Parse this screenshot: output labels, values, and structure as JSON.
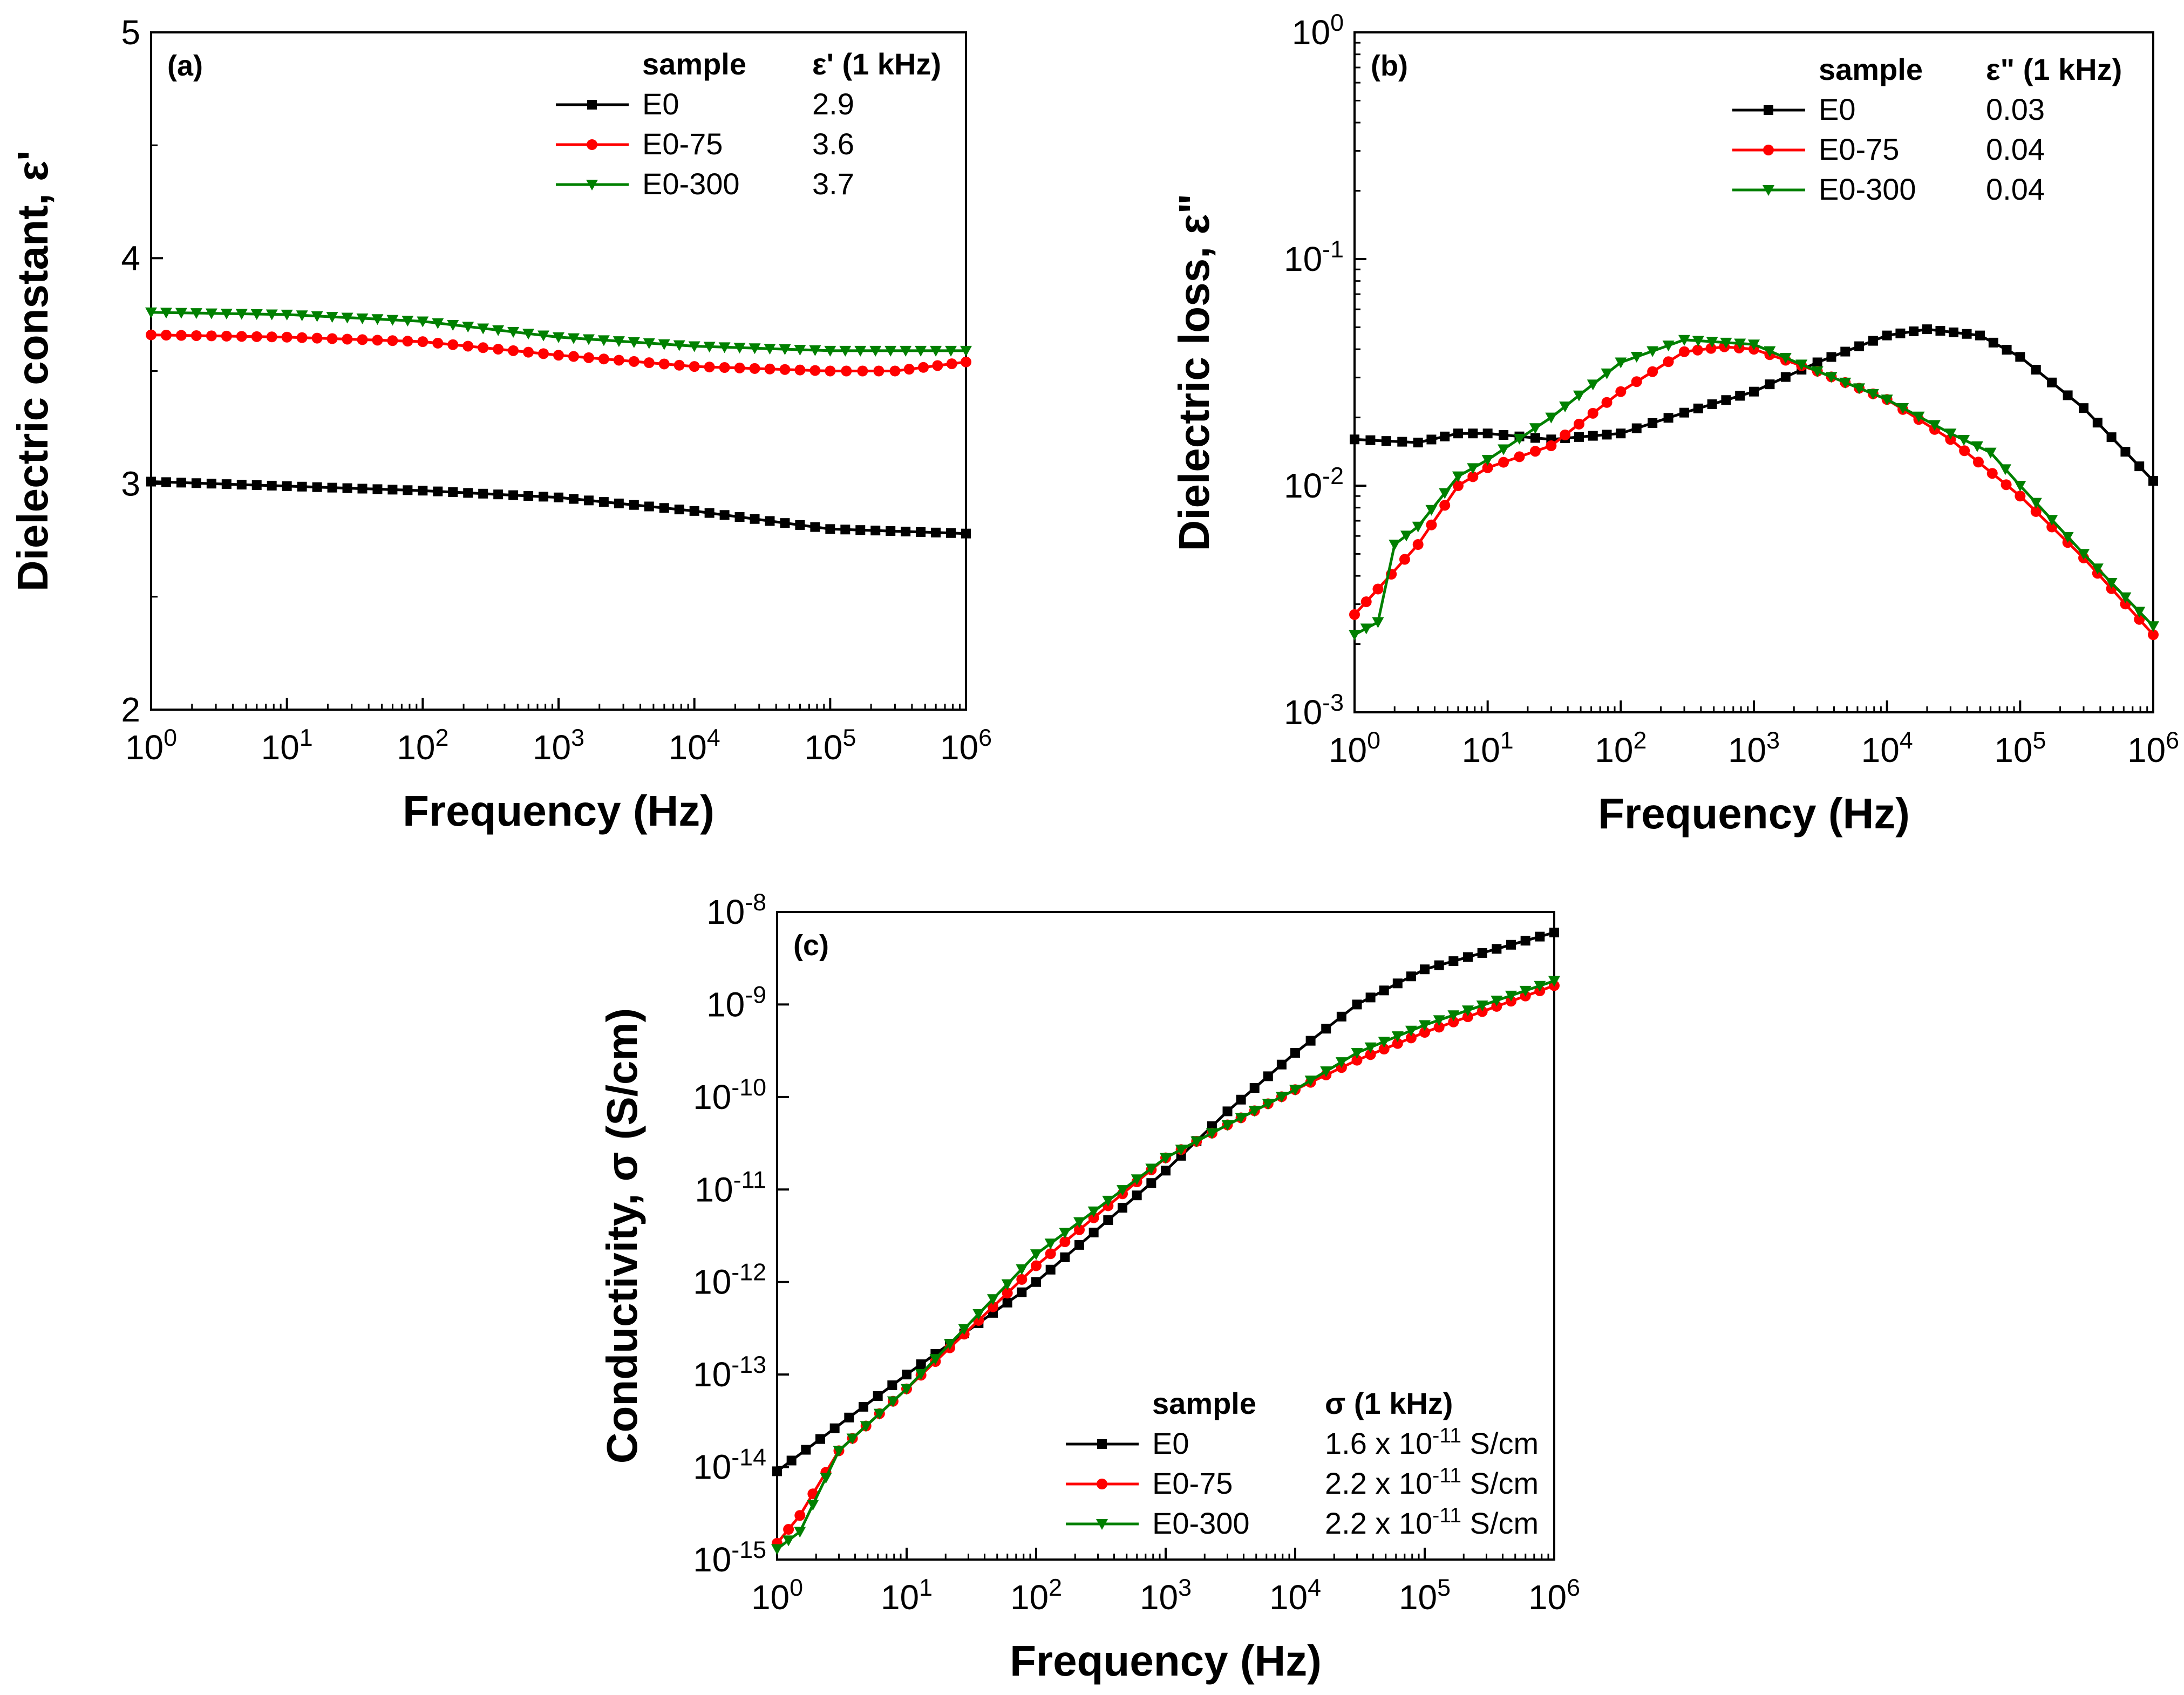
{
  "figure": {
    "colors": {
      "E0": "#000000",
      "E0-75": "#ff0000",
      "E0-300": "#008000"
    }
  },
  "chart_data": [
    {
      "id": "a",
      "type": "line",
      "panel_label": "(a)",
      "title": "",
      "xlabel": "Frequency (Hz)",
      "ylabel": "Dielectric constant, ε'",
      "xscale": "log",
      "yscale": "linear",
      "xlim": [
        1,
        1000000
      ],
      "ylim": [
        2,
        5
      ],
      "xticks": [
        1,
        10,
        100,
        1000,
        10000,
        100000,
        1000000
      ],
      "xtick_labels": [
        [
          "10",
          "0"
        ],
        [
          "10",
          "1"
        ],
        [
          "10",
          "2"
        ],
        [
          "10",
          "3"
        ],
        [
          "10",
          "4"
        ],
        [
          "10",
          "5"
        ],
        [
          "10",
          "6"
        ]
      ],
      "yticks": [
        2,
        3,
        4,
        5
      ],
      "ytick_labels": [
        "2",
        "3",
        "4",
        "5"
      ],
      "legend": {
        "position": "top-right",
        "header_sample": "sample",
        "header_value": "ε' (1 kHz)",
        "entries": [
          {
            "name": "E0",
            "value": "2.9"
          },
          {
            "name": "E0-75",
            "value": "3.6"
          },
          {
            "name": "E0-300",
            "value": "3.7"
          }
        ]
      },
      "series": [
        {
          "name": "E0",
          "marker": "square",
          "points": [
            [
              1,
              3.01
            ],
            [
              10,
              2.99
            ],
            [
              100,
              2.97
            ],
            [
              1000,
              2.94
            ],
            [
              10000,
              2.88
            ],
            [
              100000,
              2.8
            ],
            [
              1000000,
              2.78
            ]
          ]
        },
        {
          "name": "E0-75",
          "marker": "circle",
          "points": [
            [
              1,
              3.66
            ],
            [
              10,
              3.65
            ],
            [
              100,
              3.63
            ],
            [
              1000,
              3.57
            ],
            [
              10000,
              3.52
            ],
            [
              100000,
              3.5
            ],
            [
              300000,
              3.5
            ],
            [
              1000000,
              3.54
            ]
          ]
        },
        {
          "name": "E0-300",
          "marker": "triangle-down",
          "points": [
            [
              1,
              3.76
            ],
            [
              10,
              3.75
            ],
            [
              100,
              3.72
            ],
            [
              1000,
              3.65
            ],
            [
              10000,
              3.61
            ],
            [
              100000,
              3.59
            ],
            [
              1000000,
              3.59
            ]
          ]
        }
      ]
    },
    {
      "id": "b",
      "type": "line",
      "panel_label": "(b)",
      "title": "",
      "xlabel": "Frequency (Hz)",
      "ylabel": "Dielectric loss, ε\"",
      "xscale": "log",
      "yscale": "log",
      "xlim": [
        1,
        1000000
      ],
      "ylim": [
        0.001,
        1
      ],
      "xticks": [
        1,
        10,
        100,
        1000,
        10000,
        100000,
        1000000
      ],
      "xtick_labels": [
        [
          "10",
          "0"
        ],
        [
          "10",
          "1"
        ],
        [
          "10",
          "2"
        ],
        [
          "10",
          "3"
        ],
        [
          "10",
          "4"
        ],
        [
          "10",
          "5"
        ],
        [
          "10",
          "6"
        ]
      ],
      "yticks": [
        0.001,
        0.01,
        0.1,
        1
      ],
      "ytick_labels": [
        [
          "10",
          "-3"
        ],
        [
          "10",
          "-2"
        ],
        [
          "10",
          "-1"
        ],
        [
          "10",
          "0"
        ]
      ],
      "legend": {
        "position": "top-right",
        "header_sample": "sample",
        "header_value": "ε\" (1 kHz)",
        "entries": [
          {
            "name": "E0",
            "value": "0.03"
          },
          {
            "name": "E0-75",
            "value": "0.04"
          },
          {
            "name": "E0-300",
            "value": "0.04"
          }
        ]
      },
      "series": [
        {
          "name": "E0",
          "marker": "square",
          "points": [
            [
              1,
              0.016
            ],
            [
              3,
              0.0155
            ],
            [
              6,
              0.017
            ],
            [
              10,
              0.017
            ],
            [
              30,
              0.016
            ],
            [
              100,
              0.017
            ],
            [
              300,
              0.021
            ],
            [
              1000,
              0.026
            ],
            [
              3000,
              0.035
            ],
            [
              10000,
              0.046
            ],
            [
              20000,
              0.049
            ],
            [
              50000,
              0.046
            ],
            [
              100000,
              0.037
            ],
            [
              300000,
              0.022
            ],
            [
              1000000,
              0.0105
            ]
          ]
        },
        {
          "name": "E0-75",
          "marker": "circle",
          "points": [
            [
              1,
              0.0027
            ],
            [
              1.5,
              0.0035
            ],
            [
              3,
              0.0055
            ],
            [
              6,
              0.01
            ],
            [
              10,
              0.012
            ],
            [
              30,
              0.015
            ],
            [
              100,
              0.026
            ],
            [
              300,
              0.039
            ],
            [
              600,
              0.041
            ],
            [
              1000,
              0.04
            ],
            [
              3000,
              0.032
            ],
            [
              10000,
              0.024
            ],
            [
              30000,
              0.016
            ],
            [
              100000,
              0.009
            ],
            [
              300000,
              0.0048
            ],
            [
              1000000,
              0.0022
            ]
          ]
        },
        {
          "name": "E0-300",
          "marker": "triangle-down",
          "points": [
            [
              1,
              0.0022
            ],
            [
              1.5,
              0.0025
            ],
            [
              2,
              0.0055
            ],
            [
              3,
              0.0066
            ],
            [
              6,
              0.011
            ],
            [
              10,
              0.013
            ],
            [
              30,
              0.02
            ],
            [
              100,
              0.035
            ],
            [
              300,
              0.044
            ],
            [
              1000,
              0.042
            ],
            [
              3000,
              0.032
            ],
            [
              10000,
              0.024
            ],
            [
              30000,
              0.017
            ],
            [
              60000,
              0.014
            ],
            [
              100000,
              0.01
            ],
            [
              300000,
              0.005
            ],
            [
              1000000,
              0.0024
            ]
          ]
        }
      ]
    },
    {
      "id": "c",
      "type": "line",
      "panel_label": "(c)",
      "title": "",
      "xlabel": "Frequency (Hz)",
      "ylabel": "Conductivity, σ (S/cm)",
      "xscale": "log",
      "yscale": "log",
      "xlim": [
        1,
        1000000
      ],
      "ylim": [
        1e-15,
        1e-08
      ],
      "xticks": [
        1,
        10,
        100,
        1000,
        10000,
        100000,
        1000000
      ],
      "xtick_labels": [
        [
          "10",
          "0"
        ],
        [
          "10",
          "1"
        ],
        [
          "10",
          "2"
        ],
        [
          "10",
          "3"
        ],
        [
          "10",
          "4"
        ],
        [
          "10",
          "5"
        ],
        [
          "10",
          "6"
        ]
      ],
      "yticks": [
        1e-15,
        1e-14,
        1e-13,
        1e-12,
        1e-11,
        1e-10,
        1e-09,
        1e-08
      ],
      "ytick_labels": [
        [
          "10",
          "-15"
        ],
        [
          "10",
          "-14"
        ],
        [
          "10",
          "-13"
        ],
        [
          "10",
          "-12"
        ],
        [
          "10",
          "-11"
        ],
        [
          "10",
          "-10"
        ],
        [
          "10",
          "-9"
        ],
        [
          "10",
          "-8"
        ]
      ],
      "legend": {
        "position": "bottom-right",
        "header_sample": "sample",
        "header_value": "σ (1 kHz)",
        "entries": [
          {
            "name": "E0",
            "value_main": "1.6 x 10",
            "value_exp": "-11",
            "value_unit": " S/cm"
          },
          {
            "name": "E0-75",
            "value_main": "2.2 x 10",
            "value_exp": "-11",
            "value_unit": " S/cm"
          },
          {
            "name": "E0-300",
            "value_main": "2.2 x 10",
            "value_exp": "-11",
            "value_unit": " S/cm"
          }
        ]
      },
      "series": [
        {
          "name": "E0",
          "marker": "square",
          "points": [
            [
              1,
              9e-15
            ],
            [
              10,
              1e-13
            ],
            [
              100,
              1e-12
            ],
            [
              1000,
              1.6e-11
            ],
            [
              3000,
              7e-11
            ],
            [
              10000,
              3e-10
            ],
            [
              30000,
              1e-09
            ],
            [
              100000,
              2.4e-09
            ],
            [
              1000000,
              6e-09
            ]
          ]
        },
        {
          "name": "E0-75",
          "marker": "circle",
          "points": [
            [
              1,
              1.5e-15
            ],
            [
              1.5,
              3e-15
            ],
            [
              3,
              1.5e-14
            ],
            [
              10,
              7e-14
            ],
            [
              100,
              1.5e-12
            ],
            [
              1000,
              2.2e-11
            ],
            [
              3000,
              5e-11
            ],
            [
              10000,
              1.2e-10
            ],
            [
              30000,
              2.5e-10
            ],
            [
              100000,
              5e-10
            ],
            [
              1000000,
              1.6e-09
            ]
          ]
        },
        {
          "name": "E0-300",
          "marker": "triangle-down",
          "points": [
            [
              1,
              1.3e-15
            ],
            [
              1.5,
              2e-15
            ],
            [
              3,
              1.5e-14
            ],
            [
              10,
              7e-14
            ],
            [
              100,
              2e-12
            ],
            [
              1000,
              2.2e-11
            ],
            [
              3000,
              5e-11
            ],
            [
              10000,
              1.2e-10
            ],
            [
              30000,
              3e-10
            ],
            [
              100000,
              6e-10
            ],
            [
              1000000,
              1.8e-09
            ]
          ]
        }
      ]
    }
  ]
}
